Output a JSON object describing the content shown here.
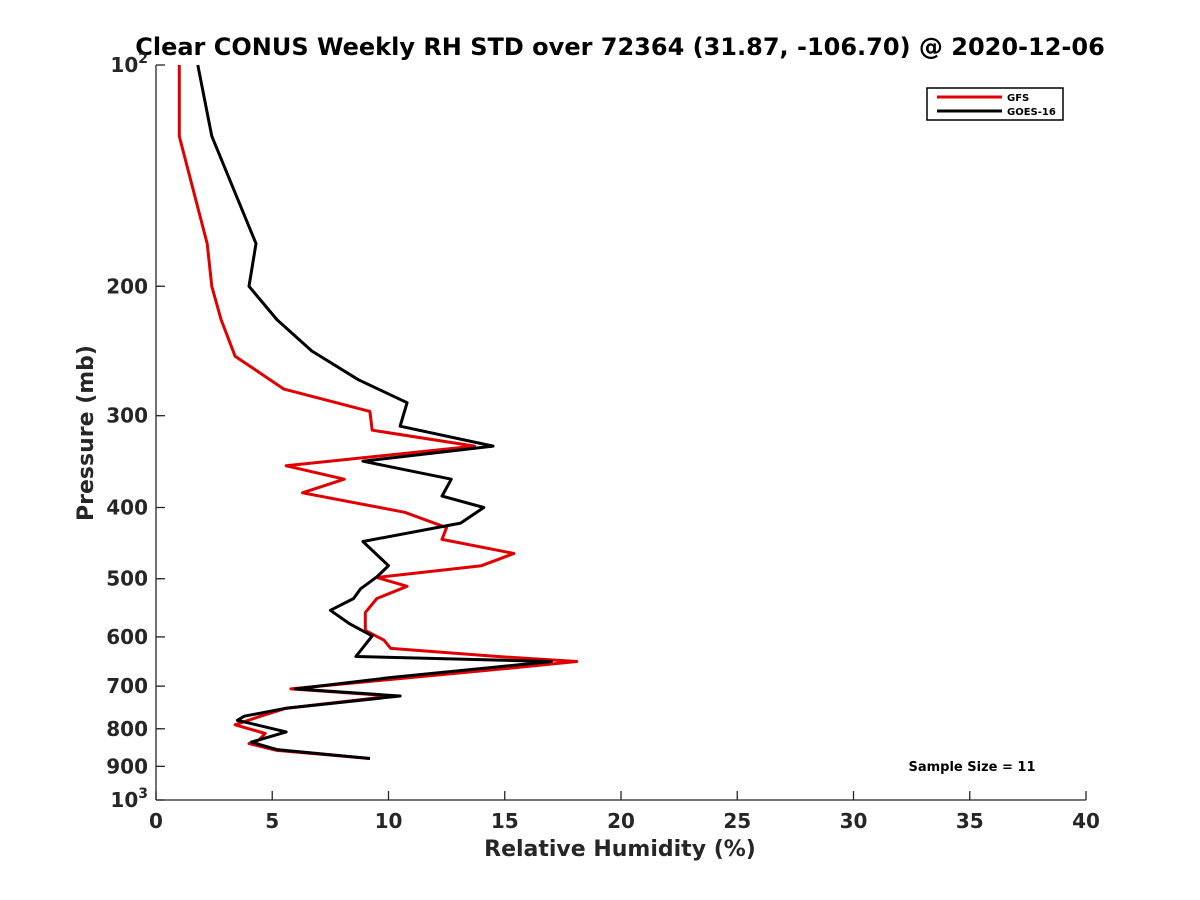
{
  "chart_data": {
    "type": "line",
    "title": "Clear CONUS Weekly RH STD over 72364 (31.87, -106.70) @ 2020-12-06",
    "xlabel": "Relative Humidity (%)",
    "ylabel": "Pressure (mb)",
    "xlim": [
      0,
      40
    ],
    "ylim": [
      100,
      1000
    ],
    "y_scale": "log",
    "y_reversed": true,
    "x_ticks": [
      "0",
      "5",
      "10",
      "15",
      "20",
      "25",
      "30",
      "35",
      "40"
    ],
    "y_ticks": [
      {
        "value": 100,
        "base": "10",
        "exp": "2"
      },
      {
        "value": 200,
        "text": "200"
      },
      {
        "value": 300,
        "text": "300"
      },
      {
        "value": 400,
        "text": "400"
      },
      {
        "value": 500,
        "text": "500"
      },
      {
        "value": 600,
        "text": "600"
      },
      {
        "value": 700,
        "text": "700"
      },
      {
        "value": 800,
        "text": "800"
      },
      {
        "value": 900,
        "text": "900"
      },
      {
        "value": 1000,
        "base": "10",
        "exp": "3"
      }
    ],
    "grid": false,
    "legend_position": "top-right",
    "annotation": "Sample Size = 11",
    "series": [
      {
        "name": "GFS",
        "color": "#e00000",
        "points": [
          [
            1.0,
            100
          ],
          [
            1.0,
            125
          ],
          [
            2.2,
            175
          ],
          [
            2.4,
            200
          ],
          [
            2.8,
            222
          ],
          [
            3.4,
            249
          ],
          [
            5.5,
            276
          ],
          [
            9.2,
            296
          ],
          [
            9.3,
            314
          ],
          [
            13.7,
            330
          ],
          [
            5.6,
            351
          ],
          [
            8.1,
            366
          ],
          [
            6.3,
            382
          ],
          [
            10.7,
            406
          ],
          [
            12.5,
            426
          ],
          [
            12.3,
            442
          ],
          [
            15.4,
            462
          ],
          [
            14.0,
            480
          ],
          [
            9.5,
            498
          ],
          [
            10.8,
            512
          ],
          [
            9.5,
            532
          ],
          [
            9.0,
            556
          ],
          [
            9.0,
            588
          ],
          [
            9.8,
            606
          ],
          [
            10.1,
            622
          ],
          [
            14.7,
            638
          ],
          [
            18.1,
            648
          ],
          [
            14.5,
            665
          ],
          [
            5.8,
            706
          ],
          [
            10.2,
            722
          ],
          [
            5.6,
            750
          ],
          [
            4.5,
            769
          ],
          [
            3.4,
            790
          ],
          [
            4.7,
            812
          ],
          [
            4.4,
            830
          ],
          [
            4.0,
            838
          ],
          [
            5.2,
            856
          ],
          [
            9.2,
            878
          ]
        ]
      },
      {
        "name": "GOES-16",
        "color": "#000000",
        "points": [
          [
            1.8,
            100
          ],
          [
            2.4,
            125
          ],
          [
            4.3,
            175
          ],
          [
            4.0,
            200
          ],
          [
            5.2,
            222
          ],
          [
            6.7,
            245
          ],
          [
            8.7,
            268
          ],
          [
            10.8,
            288
          ],
          [
            10.5,
            310
          ],
          [
            14.5,
            330
          ],
          [
            8.9,
            346
          ],
          [
            12.7,
            366
          ],
          [
            12.3,
            386
          ],
          [
            14.1,
            400
          ],
          [
            13.1,
            420
          ],
          [
            8.9,
            445
          ],
          [
            10.0,
            480
          ],
          [
            9.5,
            497
          ],
          [
            8.8,
            516
          ],
          [
            8.5,
            532
          ],
          [
            7.5,
            552
          ],
          [
            8.3,
            575
          ],
          [
            9.3,
            598
          ],
          [
            8.6,
            638
          ],
          [
            17.0,
            648
          ],
          [
            10.0,
            682
          ],
          [
            6.0,
            706
          ],
          [
            10.5,
            722
          ],
          [
            5.6,
            750
          ],
          [
            3.8,
            769
          ],
          [
            3.5,
            779
          ],
          [
            5.6,
            808
          ],
          [
            4.1,
            834
          ],
          [
            5.2,
            854
          ],
          [
            9.2,
            878
          ]
        ]
      }
    ]
  }
}
